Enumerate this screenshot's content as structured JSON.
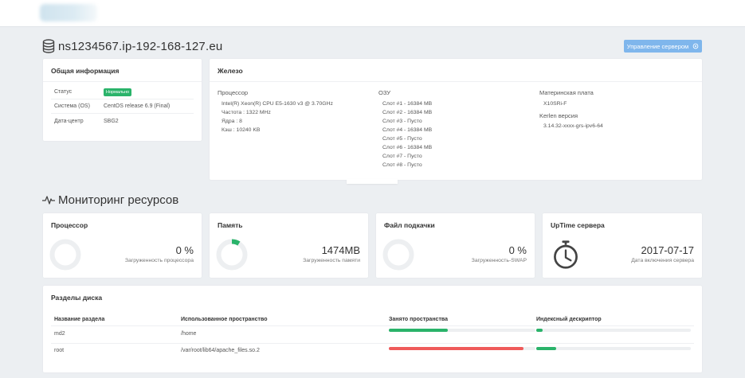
{
  "header": {
    "server_name": "ns1234567.ip-192-168-127.eu",
    "manage_label": "Управление сервером"
  },
  "general": {
    "title": "Общая информация",
    "rows": [
      {
        "key": "Статус",
        "badge": "Нормально"
      },
      {
        "key": "Система (OS)",
        "value": "CentOS release 6.9 (Final)"
      },
      {
        "key": "Дата-центр",
        "value": "SBG2"
      }
    ]
  },
  "hardware": {
    "title": "Железо",
    "cpu": {
      "head": "Процессор",
      "lines": [
        "Intel(R) Xeon(R) CPU E5-1630 v3 @ 3.70GHz",
        "Частота : 1322 MHz",
        "Ядра : 8",
        "Кэш : 10240 KB"
      ]
    },
    "ram": {
      "head": "ОЗУ",
      "lines": [
        "Слот #1 - 16384 MB",
        "Слот #2 - 16384 MB",
        "Слот #3 - Пусто",
        "Слот #4 - 16384 MB",
        "Слот #5 - Пусто",
        "Слот #6 - 16384 MB",
        "Слот #7 - Пусто",
        "Слот #8 - Пусто"
      ]
    },
    "board": {
      "head": "Материнская плата",
      "model": "X10SRi-F",
      "kernel_head": "Kerlen версия",
      "kernel": "3.14.32-xxxx-grs-ipv6-64"
    }
  },
  "monitoring": {
    "title": "Мониторинг ресурсов",
    "cards": [
      {
        "title": "Процессор",
        "value": "0 %",
        "label": "Загруженность процессора",
        "fraction": 0
      },
      {
        "title": "Память",
        "value": "1474MB",
        "label": "Загруженность памяти",
        "fraction": 0.09
      },
      {
        "title": "Файл подкачки",
        "value": "0 %",
        "label": "Загруженность-SWAP",
        "fraction": 0
      },
      {
        "title": "UpTime сервера",
        "value": "2017-07-17",
        "label": "Дата включения сервера"
      }
    ]
  },
  "disks": {
    "title": "Разделы диска",
    "columns": [
      "Название раздела",
      "Использованное пространство",
      "Занято пространства",
      "Индексный дескриптор"
    ],
    "rows": [
      {
        "name": "md2",
        "path": "/home",
        "space_fraction": 0.4,
        "inode_fraction": 0.04
      },
      {
        "name": "root",
        "path": "/var/root/lib64/apache_files.so.2",
        "space_fraction": 0.92,
        "inode_fraction": 0.13
      }
    ]
  },
  "colors": {
    "green": "#2ab36a",
    "red": "#ef5a5a",
    "accent": "#7fb6ec"
  }
}
